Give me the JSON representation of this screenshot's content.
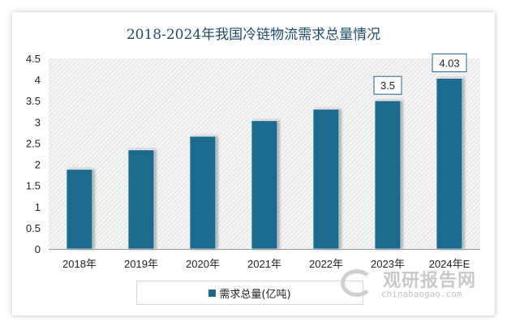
{
  "chart_data": {
    "type": "bar",
    "title": "2018-2024年我国冷链物流需求总量情况",
    "categories": [
      "2018年",
      "2019年",
      "2020年",
      "2021年",
      "2022年",
      "2023年",
      "2024年E"
    ],
    "series": [
      {
        "name": "需求总量(亿吨)",
        "values": [
          1.88,
          2.34,
          2.66,
          3.03,
          3.3,
          3.5,
          4.03
        ],
        "color": "#1c6a8e"
      }
    ],
    "data_labels": [
      {
        "category": "2023年",
        "text": "3.5"
      },
      {
        "category": "2024年E",
        "text": "4.03"
      }
    ],
    "yticks": [
      "0",
      "0.5",
      "1",
      "1.5",
      "2",
      "2.5",
      "3",
      "3.5",
      "4",
      "4.5"
    ],
    "ylim": [
      0,
      4.5
    ],
    "xlabel": "",
    "ylabel": "",
    "grid": false,
    "background": "diagonal hatch",
    "legend_position": "bottom"
  },
  "watermark": {
    "cn": "观研报告网",
    "en": "chinabaogao.com"
  }
}
